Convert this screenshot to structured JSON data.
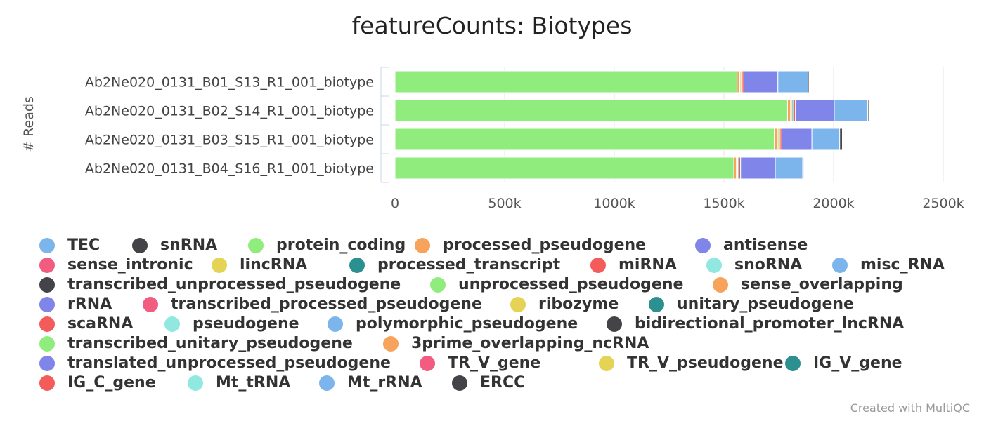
{
  "chart_data": {
    "type": "bar",
    "orientation": "horizontal",
    "stacked": true,
    "title": "featureCounts: Biotypes",
    "ylabel": "# Reads",
    "xlim": [
      0,
      2500000
    ],
    "x_ticks": [
      {
        "value": 0,
        "label": "0"
      },
      {
        "value": 500000,
        "label": "500k"
      },
      {
        "value": 1000000,
        "label": "1000k"
      },
      {
        "value": 1500000,
        "label": "1500k"
      },
      {
        "value": 2000000,
        "label": "2000k"
      },
      {
        "value": 2500000,
        "label": "2500k"
      }
    ],
    "categories": [
      "Ab2Ne020_0131_B01_S13_R1_001_biotype",
      "Ab2Ne020_0131_B02_S14_R1_001_biotype",
      "Ab2Ne020_0131_B03_S15_R1_001_biotype",
      "Ab2Ne020_0131_B04_S16_R1_001_biotype"
    ],
    "legend_position": "bottom",
    "series": [
      {
        "name": "TEC",
        "color": "#7cb5ec",
        "values": [
          0,
          0,
          0,
          0
        ]
      },
      {
        "name": "snRNA",
        "color": "#434348",
        "values": [
          0,
          0,
          0,
          0
        ]
      },
      {
        "name": "protein_coding",
        "color": "#90ed7d",
        "values": [
          1560000,
          1790000,
          1730000,
          1545000
        ]
      },
      {
        "name": "processed_pseudogene",
        "color": "#f7a35c",
        "values": [
          12000,
          14000,
          14000,
          12000
        ]
      },
      {
        "name": "antisense",
        "color": "#8085e9",
        "values": [
          0,
          0,
          0,
          0
        ]
      },
      {
        "name": "sense_intronic",
        "color": "#f15c80",
        "values": [
          0,
          0,
          0,
          0
        ]
      },
      {
        "name": "lincRNA",
        "color": "#e4d354",
        "values": [
          6000,
          7000,
          7000,
          6000
        ]
      },
      {
        "name": "processed_transcript",
        "color": "#2b908f",
        "values": [
          5000,
          6000,
          5000,
          5000
        ]
      },
      {
        "name": "miRNA",
        "color": "#f45b5b",
        "values": [
          8000,
          9000,
          8000,
          8000
        ]
      },
      {
        "name": "snoRNA",
        "color": "#91e8e1",
        "values": [
          0,
          0,
          0,
          0
        ]
      },
      {
        "name": "misc_RNA",
        "color": "#7cb5ec",
        "values": [
          0,
          0,
          0,
          0
        ]
      },
      {
        "name": "transcribed_unprocessed_pseudogene",
        "color": "#434348",
        "values": [
          0,
          0,
          0,
          0
        ]
      },
      {
        "name": "unprocessed_pseudogene",
        "color": "#90ed7d",
        "values": [
          0,
          0,
          0,
          0
        ]
      },
      {
        "name": "sense_overlapping",
        "color": "#f7a35c",
        "values": [
          0,
          0,
          0,
          0
        ]
      },
      {
        "name": "rRNA",
        "color": "#8085e9",
        "values": [
          155000,
          177000,
          137000,
          158000
        ]
      },
      {
        "name": "transcribed_processed_pseudogene",
        "color": "#f15c80",
        "values": [
          0,
          0,
          0,
          0
        ]
      },
      {
        "name": "ribozyme",
        "color": "#e4d354",
        "values": [
          0,
          0,
          0,
          0
        ]
      },
      {
        "name": "unitary_pseudogene",
        "color": "#2b908f",
        "values": [
          0,
          0,
          0,
          0
        ]
      },
      {
        "name": "scaRNA",
        "color": "#f45b5b",
        "values": [
          0,
          0,
          0,
          0
        ]
      },
      {
        "name": "pseudogene",
        "color": "#91e8e1",
        "values": [
          0,
          0,
          0,
          0
        ]
      },
      {
        "name": "polymorphic_pseudogene",
        "color": "#7cb5ec",
        "values": [
          0,
          0,
          0,
          0
        ]
      },
      {
        "name": "bidirectional_promoter_lncRNA",
        "color": "#434348",
        "values": [
          0,
          0,
          0,
          0
        ]
      },
      {
        "name": "transcribed_unitary_pseudogene",
        "color": "#90ed7d",
        "values": [
          0,
          0,
          0,
          0
        ]
      },
      {
        "name": "3prime_overlapping_ncRNA",
        "color": "#f7a35c",
        "values": [
          0,
          0,
          0,
          0
        ]
      },
      {
        "name": "translated_unprocessed_pseudogene",
        "color": "#8085e9",
        "values": [
          0,
          0,
          0,
          0
        ]
      },
      {
        "name": "TR_V_gene",
        "color": "#f15c80",
        "values": [
          0,
          0,
          0,
          0
        ]
      },
      {
        "name": "TR_V_pseudogene",
        "color": "#e4d354",
        "values": [
          0,
          0,
          0,
          0
        ]
      },
      {
        "name": "IG_V_gene",
        "color": "#2b908f",
        "values": [
          0,
          0,
          0,
          0
        ]
      },
      {
        "name": "IG_C_gene",
        "color": "#f45b5b",
        "values": [
          0,
          0,
          0,
          0
        ]
      },
      {
        "name": "Mt_tRNA",
        "color": "#91e8e1",
        "values": [
          0,
          0,
          0,
          0
        ]
      },
      {
        "name": "Mt_rRNA",
        "color": "#7cb5ec",
        "values": [
          138000,
          153000,
          127000,
          125000
        ]
      },
      {
        "name": "ERCC",
        "color": "#434348",
        "values": [
          5000,
          5000,
          12000,
          5000
        ]
      }
    ]
  },
  "credit": "Created with MultiQC"
}
